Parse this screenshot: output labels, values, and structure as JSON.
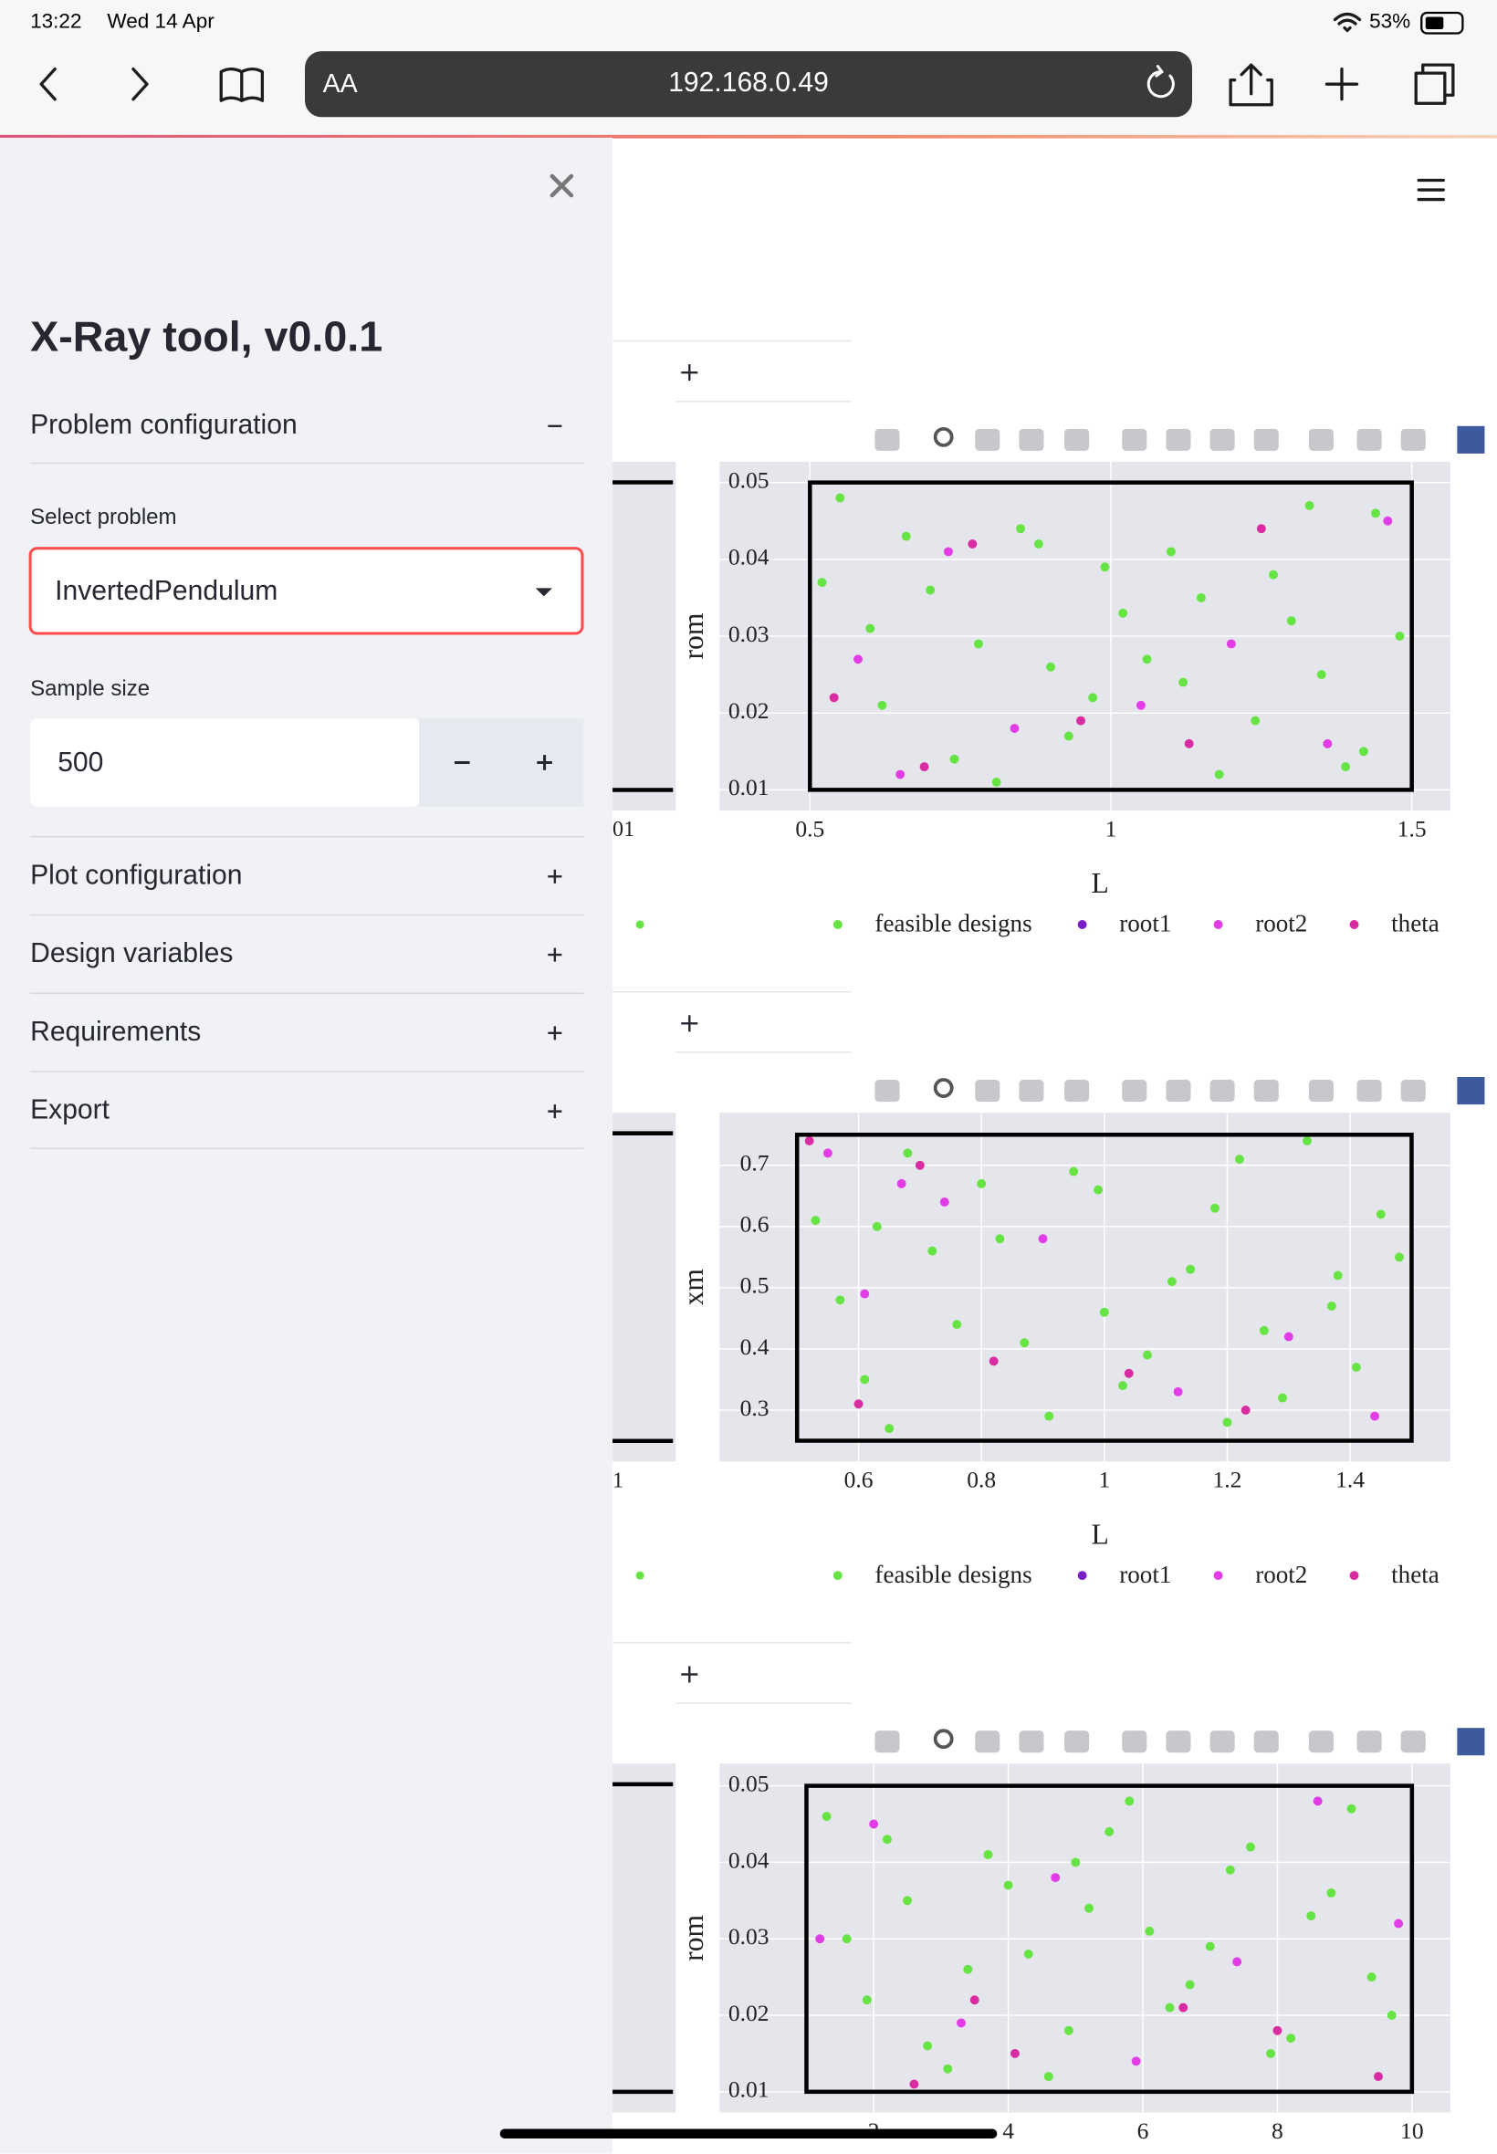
{
  "status_bar": {
    "time": "13:22",
    "date": "Wed 14 Apr",
    "battery": "53%"
  },
  "browser": {
    "text_size": "AA",
    "url": "192.168.0.49"
  },
  "sidebar": {
    "title": "X-Ray tool, v0.0.1",
    "sections": [
      "Problem configuration",
      "Plot configuration",
      "Design variables",
      "Requirements",
      "Export"
    ],
    "select_label": "Select problem",
    "select_value": "InvertedPendulum",
    "sample_label": "Sample size",
    "sample_value": "500"
  },
  "chart_data": [
    {
      "type": "scatter",
      "x_label": "L",
      "y_label": "rom",
      "xlim": [
        0.35,
        1.564
      ],
      "ylim": [
        0.0073,
        0.0527
      ],
      "xticks": [
        0.5,
        1,
        1.5
      ],
      "yticks": [
        0.01,
        0.02,
        0.03,
        0.04,
        0.05
      ],
      "box": {
        "x": [
          0.5,
          1.5
        ],
        "y": [
          0.01,
          0.05
        ]
      },
      "neighbor_tick_fragment": "01",
      "series": [
        {
          "name": "feasible designs",
          "color": "#66e444",
          "x": [
            0.55,
            0.62,
            0.7,
            0.78,
            0.85,
            0.93,
            1.02,
            1.1,
            1.18,
            1.27,
            1.35,
            1.44,
            0.6,
            0.74,
            0.88,
            0.97,
            1.06,
            1.15,
            1.24,
            1.33,
            1.42,
            1.48,
            0.66,
            0.81,
            0.99,
            1.12,
            1.3,
            1.39,
            0.52,
            0.9
          ],
          "y": [
            0.048,
            0.021,
            0.036,
            0.029,
            0.044,
            0.017,
            0.033,
            0.041,
            0.012,
            0.038,
            0.025,
            0.046,
            0.031,
            0.014,
            0.042,
            0.022,
            0.027,
            0.035,
            0.019,
            0.047,
            0.015,
            0.03,
            0.043,
            0.011,
            0.039,
            0.024,
            0.032,
            0.013,
            0.037,
            0.026
          ]
        },
        {
          "name": "root1",
          "color": "#7a1fc8",
          "x": [],
          "y": []
        },
        {
          "name": "root2",
          "color": "#e23ce6",
          "x": [
            0.58,
            0.73,
            0.84,
            1.2,
            1.36,
            0.65,
            1.05,
            1.46
          ],
          "y": [
            0.027,
            0.041,
            0.018,
            0.029,
            0.016,
            0.012,
            0.021,
            0.045
          ]
        },
        {
          "name": "theta",
          "color": "#d92ca0",
          "x": [
            0.54,
            0.69,
            0.95,
            1.25,
            0.77,
            1.13
          ],
          "y": [
            0.022,
            0.013,
            0.019,
            0.044,
            0.042,
            0.016
          ]
        }
      ]
    },
    {
      "type": "scatter",
      "x_label": "L",
      "y_label": "xm",
      "xlim": [
        0.374,
        1.563
      ],
      "ylim": [
        0.216,
        0.786
      ],
      "xticks": [
        0.6,
        0.8,
        1,
        1.2,
        1.4
      ],
      "yticks": [
        0.3,
        0.4,
        0.5,
        0.6,
        0.7
      ],
      "box": {
        "x": [
          0.5,
          1.5
        ],
        "y": [
          0.25,
          0.75
        ]
      },
      "neighbor_tick_fragment": "1",
      "series": [
        {
          "name": "feasible designs",
          "color": "#66e444",
          "x": [
            0.53,
            0.61,
            0.68,
            0.76,
            0.83,
            0.91,
            0.99,
            1.07,
            1.14,
            1.22,
            1.29,
            1.37,
            1.45,
            0.57,
            0.65,
            0.72,
            0.87,
            0.95,
            1.03,
            1.11,
            1.18,
            1.26,
            1.33,
            1.41,
            1.48,
            0.8,
            1.0,
            1.2,
            0.63,
            1.38
          ],
          "y": [
            0.61,
            0.35,
            0.72,
            0.44,
            0.58,
            0.29,
            0.66,
            0.39,
            0.53,
            0.71,
            0.32,
            0.47,
            0.62,
            0.48,
            0.27,
            0.56,
            0.41,
            0.69,
            0.34,
            0.51,
            0.63,
            0.43,
            0.74,
            0.37,
            0.55,
            0.67,
            0.46,
            0.28,
            0.6,
            0.52
          ]
        },
        {
          "name": "root1",
          "color": "#7a1fc8",
          "x": [],
          "y": []
        },
        {
          "name": "root2",
          "color": "#e23ce6",
          "x": [
            0.55,
            0.67,
            0.74,
            0.9,
            1.12,
            1.3,
            0.61,
            1.44
          ],
          "y": [
            0.72,
            0.67,
            0.64,
            0.58,
            0.33,
            0.42,
            0.49,
            0.29
          ]
        },
        {
          "name": "theta",
          "color": "#d92ca0",
          "x": [
            0.52,
            0.7,
            0.82,
            1.04,
            1.23,
            0.6
          ],
          "y": [
            0.74,
            0.7,
            0.38,
            0.36,
            0.3,
            0.31
          ]
        }
      ]
    },
    {
      "type": "scatter",
      "y_label": "rom",
      "xlim": [
        -0.29,
        10.57
      ],
      "ylim": [
        0.0073,
        0.0529
      ],
      "xticks": [
        2,
        4,
        6,
        8,
        10
      ],
      "yticks": [
        0.01,
        0.02,
        0.03,
        0.04,
        0.05
      ],
      "box": {
        "x": [
          1,
          10
        ],
        "y": [
          0.01,
          0.05
        ]
      },
      "series": [
        {
          "name": "feasible designs",
          "color": "#66e444",
          "x": [
            1.3,
            1.9,
            2.5,
            3.1,
            3.7,
            4.3,
            4.9,
            5.5,
            6.1,
            6.7,
            7.3,
            7.9,
            8.5,
            9.1,
            9.7,
            1.6,
            2.2,
            2.8,
            3.4,
            4.0,
            4.6,
            5.2,
            5.8,
            6.4,
            7.0,
            7.6,
            8.2,
            8.8,
            9.4,
            5.0
          ],
          "y": [
            0.046,
            0.022,
            0.035,
            0.013,
            0.041,
            0.028,
            0.018,
            0.044,
            0.031,
            0.024,
            0.039,
            0.015,
            0.033,
            0.047,
            0.02,
            0.03,
            0.043,
            0.016,
            0.026,
            0.037,
            0.012,
            0.034,
            0.048,
            0.021,
            0.029,
            0.042,
            0.017,
            0.036,
            0.025,
            0.04
          ]
        },
        {
          "name": "root1",
          "color": "#7a1fc8",
          "x": [],
          "y": []
        },
        {
          "name": "root2",
          "color": "#e23ce6",
          "x": [
            1.2,
            2.0,
            3.3,
            4.7,
            5.9,
            7.4,
            8.6,
            9.8
          ],
          "y": [
            0.03,
            0.045,
            0.019,
            0.038,
            0.014,
            0.027,
            0.048,
            0.032
          ]
        },
        {
          "name": "theta",
          "color": "#d92ca0",
          "x": [
            2.6,
            4.1,
            6.6,
            8.0,
            9.5,
            3.5
          ],
          "y": [
            0.011,
            0.015,
            0.021,
            0.018,
            0.012,
            0.022
          ]
        }
      ]
    }
  ]
}
